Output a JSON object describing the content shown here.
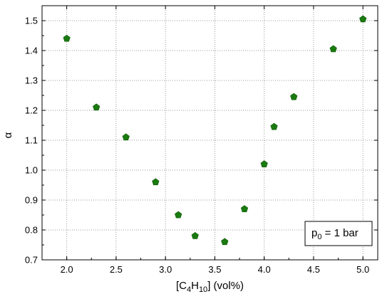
{
  "chart_data": {
    "type": "scatter",
    "title": "",
    "xlabel": "",
    "ylabel": "α",
    "xlabel_parts": {
      "pre": "[C",
      "sub1": "4",
      "mid": "H",
      "sub2": "10",
      "post": "] (vol%)"
    },
    "xlim": [
      1.75,
      5.15
    ],
    "ylim": [
      0.7,
      1.55
    ],
    "xticks": [
      2.0,
      2.5,
      3.0,
      3.5,
      4.0,
      4.5,
      5.0
    ],
    "xtick_labels": [
      "2.0",
      "2.5",
      "3.0",
      "3.5",
      "4.0",
      "4.5",
      "5.0"
    ],
    "yticks": [
      0.7,
      0.8,
      0.9,
      1.0,
      1.1,
      1.2,
      1.3,
      1.4,
      1.5
    ],
    "ytick_labels": [
      "0.7",
      "0.8",
      "0.9",
      "1.0",
      "1.1",
      "1.2",
      "1.3",
      "1.4",
      "1.5"
    ],
    "grid": true,
    "marker": "pentagon",
    "color": "#1a7a10",
    "points": [
      {
        "x": 2.0,
        "y": 1.44
      },
      {
        "x": 2.3,
        "y": 1.21
      },
      {
        "x": 2.6,
        "y": 1.11
      },
      {
        "x": 2.9,
        "y": 0.96
      },
      {
        "x": 3.13,
        "y": 0.85
      },
      {
        "x": 3.3,
        "y": 0.78
      },
      {
        "x": 3.6,
        "y": 0.76
      },
      {
        "x": 3.8,
        "y": 0.87
      },
      {
        "x": 4.0,
        "y": 1.02
      },
      {
        "x": 4.1,
        "y": 1.145
      },
      {
        "x": 4.3,
        "y": 1.245
      },
      {
        "x": 4.7,
        "y": 1.405
      },
      {
        "x": 5.0,
        "y": 1.505
      }
    ],
    "annotation": {
      "pre": "p",
      "sub": "0",
      "post": " = 1 bar",
      "position": "bottom-right"
    }
  }
}
